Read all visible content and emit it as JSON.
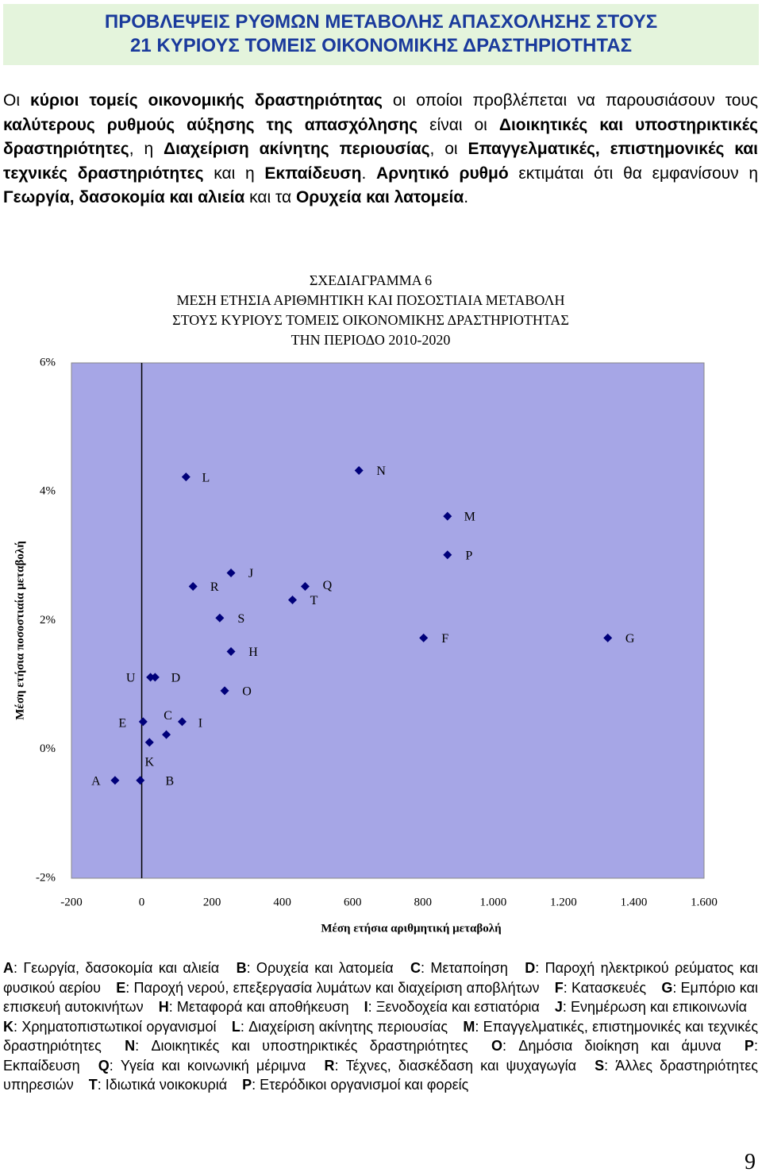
{
  "header": {
    "title": [
      "ΠΡΟΒΛΕΨΕΙΣ ΡΥΘΜΩΝ ΜΕΤΑΒΟΛΗΣ ΑΠΑΣΧΟΛΗΣΗΣ ΣΤΟΥΣ",
      "21 ΚΥΡΙΟΥΣ ΤΟΜΕΙΣ ΟΙΚΟΝΟΜΙΚΗΣ ΔΡΑΣΤΗΡΙΟΤΗΤΑΣ"
    ]
  },
  "paragraph": [
    {
      "text": "Οι ",
      "bold": false
    },
    {
      "text": "κύριοι τομείς οικονομικής δραστηριότητας",
      "bold": true
    },
    {
      "text": " οι οποίοι προβλέπεται να παρουσιάσουν τους ",
      "bold": false
    },
    {
      "text": "καλύτερους ρυθμούς αύξησης της απασχόλησης",
      "bold": true
    },
    {
      "text": " είναι οι ",
      "bold": false
    },
    {
      "text": "Διοικητικές και υποστηρικτικές δραστηριότητες",
      "bold": true
    },
    {
      "text": ", η ",
      "bold": false
    },
    {
      "text": "Διαχείριση ακίνητης περιουσίας",
      "bold": true
    },
    {
      "text": ", οι ",
      "bold": false
    },
    {
      "text": "Επαγγελματικές, επιστημονικές και τεχνικές δραστηριότητες",
      "bold": true
    },
    {
      "text": " και η ",
      "bold": false
    },
    {
      "text": "Εκπαίδευση",
      "bold": true
    },
    {
      "text": ". ",
      "bold": false
    },
    {
      "text": "Αρνητικό ρυθμό",
      "bold": true
    },
    {
      "text": " εκτιμάται ότι θα εμφανίσουν η ",
      "bold": false
    },
    {
      "text": "Γεωργία, δασοκομία και αλιεία",
      "bold": true
    },
    {
      "text": " και τα ",
      "bold": false
    },
    {
      "text": "Ορυχεία και λατομεία",
      "bold": true
    },
    {
      "text": ".",
      "bold": false
    }
  ],
  "chart_data": {
    "type": "scatter",
    "title": [
      "ΣΧΕΔΙΑΓΡΑΜΜΑ 6",
      "ΜΕΣΗ ΕΤΗΣΙΑ ΑΡΙΘΜΗΤΙΚΗ ΚΑΙ ΠΟΣΟΣΤΙΑΙΑ ΜΕΤΑΒΟΛΗ",
      "ΣΤΟΥΣ ΚΥΡΙΟΥΣ ΤΟΜΕΙΣ ΟΙΚΟΝΟΜΙΚΗΣ ΔΡΑΣΤΗΡΙΟΤΗΤΑΣ",
      "ΤΗΝ ΠΕΡΙΟΔΟ 2010-2020"
    ],
    "x_label": "Μέση ετήσια αριθμητική μεταβολή",
    "y_label": "Μέση ετήσια ποσοστιαία μεταβολή",
    "labels": [
      "A",
      "B",
      "K",
      "E",
      "C",
      "I",
      "U",
      "D",
      "O",
      "H",
      "S",
      "R",
      "J",
      "T",
      "Q",
      "F",
      "G",
      "P",
      "M",
      "L",
      "N"
    ],
    "x": [
      -76,
      -4,
      22,
      4,
      70,
      115,
      25,
      38,
      236,
      254,
      222,
      146,
      254,
      429,
      465,
      802,
      1326,
      870,
      870,
      126,
      618
    ],
    "values": [
      -0.48,
      -0.48,
      0.11,
      0.43,
      0.23,
      0.43,
      1.12,
      1.12,
      0.91,
      1.52,
      2.04,
      2.53,
      2.74,
      2.32,
      2.53,
      1.73,
      1.73,
      3.02,
      3.62,
      4.23,
      4.33
    ],
    "color": "#00007a",
    "background": "#a6a6e6",
    "xlim": [
      -200,
      1600
    ],
    "xticks": [
      -200,
      0,
      200,
      400,
      600,
      800,
      {
        "value": 1000,
        "label": "1.000"
      },
      {
        "value": 1200,
        "label": "1.200"
      },
      {
        "value": 1400,
        "label": "1.400"
      },
      {
        "value": 1600,
        "label": "1.600"
      }
    ],
    "ylim": [
      -2,
      6
    ],
    "yticks": [
      {
        "value": -2,
        "label": "-2%"
      },
      {
        "value": 0,
        "label": "0%"
      },
      {
        "value": 2,
        "label": "2%"
      },
      {
        "value": 4,
        "label": "4%"
      },
      {
        "value": 6,
        "label": "6%"
      }
    ],
    "grid": false
  },
  "legend": [
    {
      "code": "A",
      "text": ": Γεωργία, δασοκομία και αλιεία"
    },
    {
      "code": "B",
      "text": ": Ορυχεία και λατομεία"
    },
    {
      "code": "C",
      "text": ": Μεταποίηση"
    },
    {
      "code": "D",
      "text": ": Παροχή ηλεκτρικού ρεύματος και φυσικού αερίου"
    },
    {
      "code": "E",
      "text": ": Παροχή νερού, επεξεργασία λυμάτων και διαχείριση αποβλήτων"
    },
    {
      "code": "F",
      "text": ": Κατασκευές"
    },
    {
      "code": "G",
      "text": ": Εμπόριο και επισκευή αυτοκινήτων"
    },
    {
      "code": "H",
      "text": ": Μεταφορά και αποθήκευση"
    },
    {
      "code": "I",
      "text": ": Ξενοδοχεία και εστιατόρια"
    },
    {
      "code": "J",
      "text": ": Ενημέρωση και επικοινωνία"
    },
    {
      "code": "K",
      "text": ": Χρηματοπιστωτικοί οργανισμοί"
    },
    {
      "code": "L",
      "text": ": Διαχείριση ακίνητης περιουσίας"
    },
    {
      "code": "M",
      "text": ": Επαγγελματικές, επιστημονικές και τεχνικές δραστηριότητες"
    },
    {
      "code": "N",
      "text": ": Διοικητικές και υποστηρικτικές δραστηριότητες"
    },
    {
      "code": "O",
      "text": ": Δημόσια διοίκηση και άμυνα"
    },
    {
      "code": "P",
      "text": ": Εκπαίδευση"
    },
    {
      "code": "Q",
      "text": ": Υγεία και κοινωνική μέριμνα"
    },
    {
      "code": "R",
      "text": ": Τέχνες, διασκέδαση και ψυχαγωγία"
    },
    {
      "code": "S",
      "text": ": Άλλες δραστηριότητες υπηρεσιών"
    },
    {
      "code": "T",
      "text": ": Ιδιωτικά νοικοκυριά"
    },
    {
      "code": "P",
      "text": ": Ετερόδικοι οργανισμοί και φορείς"
    }
  ],
  "page_number": "9"
}
